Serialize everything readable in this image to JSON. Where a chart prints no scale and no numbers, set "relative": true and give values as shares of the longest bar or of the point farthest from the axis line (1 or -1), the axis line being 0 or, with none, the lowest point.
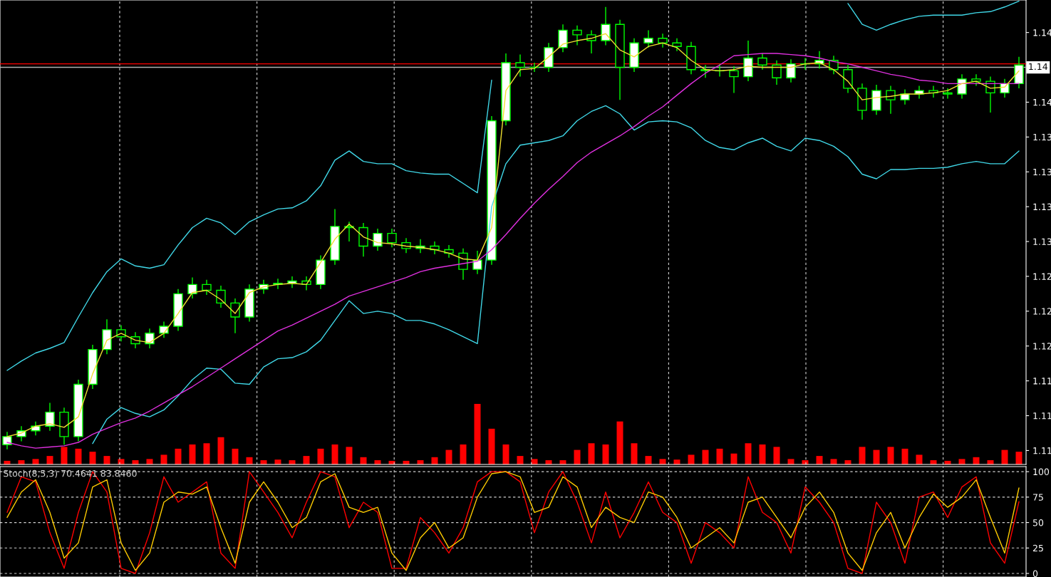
{
  "chart_data": [
    {
      "type": "candlestick",
      "categories": [
        null,
        null,
        null,
        null,
        null,
        null,
        null,
        null,
        null,
        null,
        null,
        null,
        null,
        null,
        null,
        null,
        null,
        null,
        null,
        null,
        null,
        null,
        null,
        null,
        null,
        null,
        null,
        null,
        null,
        null,
        null,
        null,
        null,
        null,
        null,
        null,
        null,
        null,
        null,
        null,
        null,
        null,
        null,
        null,
        null,
        null,
        null,
        null,
        null,
        null,
        null,
        null,
        null,
        null,
        null,
        null,
        null,
        null,
        null,
        null,
        null,
        null,
        null,
        null,
        null,
        null,
        null,
        null,
        null,
        null,
        null,
        null
      ],
      "color": "#00ff00",
      "ohlc": [
        [
          1.108,
          1.1091,
          1.1076,
          1.1087
        ],
        [
          1.1087,
          1.1096,
          1.1083,
          1.1092
        ],
        [
          1.1092,
          1.11,
          1.1088,
          1.1096
        ],
        [
          1.1096,
          1.1116,
          1.1092,
          1.1108
        ],
        [
          1.1108,
          1.1112,
          1.108,
          1.1087
        ],
        [
          1.1087,
          1.1136,
          1.1083,
          1.1132
        ],
        [
          1.1132,
          1.1166,
          1.1128,
          1.1162
        ],
        [
          1.1162,
          1.1188,
          1.1158,
          1.1179
        ],
        [
          1.1179,
          1.1183,
          1.1169,
          1.1173
        ],
        [
          1.1173,
          1.1177,
          1.1163,
          1.1167
        ],
        [
          1.1167,
          1.118,
          1.1163,
          1.1176
        ],
        [
          1.1176,
          1.1186,
          1.1172,
          1.1182
        ],
        [
          1.1182,
          1.1214,
          1.1178,
          1.121
        ],
        [
          1.121,
          1.1224,
          1.1206,
          1.1218
        ],
        [
          1.1218,
          1.1222,
          1.1209,
          1.1213
        ],
        [
          1.1213,
          1.1217,
          1.1198,
          1.1202
        ],
        [
          1.1202,
          1.1206,
          1.1176,
          1.119
        ],
        [
          1.119,
          1.1218,
          1.1186,
          1.1214
        ],
        [
          1.1214,
          1.1222,
          1.121,
          1.1218
        ],
        [
          1.1218,
          1.1223,
          1.1214,
          1.1219
        ],
        [
          1.1219,
          1.1225,
          1.1215,
          1.1221
        ],
        [
          1.1221,
          1.1225,
          1.1213,
          1.1218
        ],
        [
          1.1218,
          1.1243,
          1.1214,
          1.1239
        ],
        [
          1.1239,
          1.1283,
          1.1235,
          1.1268
        ],
        [
          1.1268,
          1.1272,
          1.1255,
          1.1267
        ],
        [
          1.1267,
          1.1271,
          1.1242,
          1.1251
        ],
        [
          1.1251,
          1.1266,
          1.1247,
          1.1262
        ],
        [
          1.1262,
          1.1266,
          1.125,
          1.1254
        ],
        [
          1.1254,
          1.1258,
          1.1245,
          1.1249
        ],
        [
          1.1249,
          1.1257,
          1.1245,
          1.1251
        ],
        [
          1.1251,
          1.1255,
          1.1244,
          1.1248
        ],
        [
          1.1248,
          1.1252,
          1.1241,
          1.1245
        ],
        [
          1.1245,
          1.1249,
          1.1222,
          1.1231
        ],
        [
          1.1231,
          1.1247,
          1.1227,
          1.1239
        ],
        [
          1.1239,
          1.1363,
          1.1235,
          1.1359
        ],
        [
          1.1359,
          1.1417,
          1.1355,
          1.1409
        ],
        [
          1.1409,
          1.1416,
          1.1397,
          1.1405
        ],
        [
          1.1405,
          1.1409,
          1.1401,
          1.1405
        ],
        [
          1.1405,
          1.1426,
          1.1401,
          1.1422
        ],
        [
          1.1422,
          1.1442,
          1.1418,
          1.1437
        ],
        [
          1.1437,
          1.1441,
          1.1424,
          1.1433
        ],
        [
          1.1433,
          1.1437,
          1.1417,
          1.1428
        ],
        [
          1.1428,
          1.1457,
          1.1424,
          1.1442
        ],
        [
          1.1442,
          1.1446,
          1.1377,
          1.1405
        ],
        [
          1.1405,
          1.143,
          1.1401,
          1.1426
        ],
        [
          1.1426,
          1.1437,
          1.1422,
          1.143
        ],
        [
          1.143,
          1.1434,
          1.1422,
          1.1426
        ],
        [
          1.1426,
          1.143,
          1.1419,
          1.1423
        ],
        [
          1.1423,
          1.1427,
          1.1399,
          1.1403
        ],
        [
          1.1403,
          1.1407,
          1.1396,
          1.1402
        ],
        [
          1.1402,
          1.1408,
          1.1397,
          1.1402
        ],
        [
          1.1402,
          1.1406,
          1.1383,
          1.1397
        ],
        [
          1.1397,
          1.1428,
          1.1393,
          1.1413
        ],
        [
          1.1413,
          1.1417,
          1.1403,
          1.1407
        ],
        [
          1.1407,
          1.1411,
          1.139,
          1.1396
        ],
        [
          1.1396,
          1.1412,
          1.1392,
          1.1408
        ],
        [
          1.1408,
          1.1413,
          1.1403,
          1.1408
        ],
        [
          1.1408,
          1.1419,
          1.1404,
          1.1411
        ],
        [
          1.1411,
          1.1415,
          1.1399,
          1.1403
        ],
        [
          1.1403,
          1.1407,
          1.1383,
          1.1387
        ],
        [
          1.1387,
          1.1391,
          1.136,
          1.1368
        ],
        [
          1.1368,
          1.139,
          1.1364,
          1.1385
        ],
        [
          1.1385,
          1.1389,
          1.1365,
          1.1377
        ],
        [
          1.1377,
          1.1386,
          1.1373,
          1.1382
        ],
        [
          1.1382,
          1.1389,
          1.1378,
          1.1385
        ],
        [
          1.1385,
          1.1389,
          1.1379,
          1.1383
        ],
        [
          1.1383,
          1.1387,
          1.1378,
          1.1382
        ],
        [
          1.1382,
          1.1399,
          1.1378,
          1.1395
        ],
        [
          1.1395,
          1.1399,
          1.1389,
          1.1393
        ],
        [
          1.1393,
          1.1397,
          1.1366,
          1.1383
        ],
        [
          1.1383,
          1.1395,
          1.1379,
          1.1391
        ],
        [
          1.1391,
          1.1414,
          1.1387,
          1.1407
        ]
      ],
      "series": [
        {
          "type": "line",
          "color": "#40d8e8",
          "values": [
            1.1144,
            1.1152,
            1.1159,
            1.1163,
            1.1168,
            1.119,
            1.1211,
            1.1229,
            1.124,
            1.1234,
            1.1232,
            1.1235,
            1.1252,
            1.1267,
            1.1275,
            1.1271,
            1.1261,
            1.1272,
            1.1278,
            1.1283,
            1.1284,
            1.129,
            1.1303,
            1.1325,
            1.1333,
            1.1324,
            1.1322,
            1.1322,
            1.1316,
            1.1314,
            1.1313,
            1.1313,
            1.1305,
            1.1297,
            1.1394,
            null,
            null,
            null,
            null,
            null,
            null,
            null,
            null,
            null,
            null,
            null,
            null,
            null,
            null,
            null,
            null,
            null,
            null,
            null,
            null,
            null,
            null,
            null,
            null,
            1.146,
            1.1442,
            1.1437,
            1.1442,
            1.1446,
            1.1449,
            1.145,
            1.145,
            1.145,
            1.1452,
            1.1453,
            1.1457,
            1.1462
          ]
        },
        {
          "type": "line",
          "color": "#40d8e8",
          "values": [
            null,
            null,
            null,
            null,
            null,
            null,
            1.1081,
            1.1102,
            1.1112,
            1.1107,
            1.1104,
            1.111,
            1.1122,
            1.1136,
            1.1146,
            1.1145,
            1.1133,
            1.1132,
            1.1147,
            1.1154,
            1.1155,
            1.116,
            1.117,
            1.1187,
            1.1204,
            1.1193,
            1.1195,
            1.1193,
            1.1187,
            1.1187,
            1.1184,
            1.1179,
            1.1173,
            1.1167,
            1.1285,
            1.1322,
            1.1338,
            1.134,
            1.1342,
            1.1346,
            1.1359,
            1.1367,
            1.1372,
            1.1365,
            1.1351,
            1.1358,
            1.1359,
            1.1358,
            1.1353,
            1.1342,
            1.1336,
            1.1334,
            1.134,
            1.1344,
            1.1337,
            1.1333,
            1.1344,
            1.1342,
            1.1337,
            1.1328,
            1.1313,
            1.1309,
            1.1317,
            1.1317,
            1.1318,
            1.1318,
            1.1319,
            1.1322,
            1.1324,
            1.1322,
            1.1322,
            1.1333
          ]
        },
        {
          "type": "line",
          "color": "#e030e0",
          "values": [
            1.1082,
            1.1079,
            1.1077,
            1.1078,
            1.1079,
            1.1082,
            1.1089,
            1.1094,
            1.1099,
            1.1103,
            1.1109,
            1.1116,
            1.1123,
            1.113,
            1.1138,
            1.1146,
            1.1154,
            1.1162,
            1.117,
            1.1178,
            1.1183,
            1.1189,
            1.1195,
            1.1201,
            1.1208,
            1.1212,
            1.1216,
            1.122,
            1.1224,
            1.1229,
            1.1232,
            1.1234,
            1.1236,
            1.1238,
            1.1248,
            1.1261,
            1.1275,
            1.1288,
            1.13,
            1.1311,
            1.1323,
            1.1332,
            1.1339,
            1.1346,
            1.1354,
            1.1363,
            1.1371,
            1.1381,
            1.1391,
            1.14,
            1.1407,
            1.1415,
            1.1416,
            1.1417,
            1.1417,
            1.1416,
            1.1415,
            1.1413,
            1.141,
            1.1408,
            1.1405,
            1.1402,
            1.1399,
            1.1397,
            1.1394,
            1.1393,
            1.1391,
            1.1391,
            1.1391,
            1.1391,
            1.1391,
            1.1391
          ]
        },
        {
          "type": "line",
          "color": "#f0e030",
          "values": [
            1.1087,
            1.109,
            1.1096,
            1.1098,
            1.1095,
            1.1104,
            1.1141,
            1.117,
            1.1176,
            1.117,
            1.1168,
            1.1176,
            1.1193,
            1.1211,
            1.1213,
            1.1205,
            1.1193,
            1.1211,
            1.1216,
            1.1218,
            1.1219,
            1.1218,
            1.1237,
            1.1257,
            1.127,
            1.1259,
            1.1254,
            1.1253,
            1.1251,
            1.125,
            1.1248,
            1.1245,
            1.124,
            1.1239,
            1.1267,
            1.1385,
            1.1403,
            1.1404,
            1.1414,
            1.1425,
            1.1428,
            1.143,
            1.1434,
            1.142,
            1.1414,
            1.1423,
            1.1426,
            1.1422,
            1.1411,
            1.1403,
            1.1402,
            1.1403,
            1.1406,
            1.1405,
            1.1405,
            1.1405,
            1.1408,
            1.1409,
            1.1403,
            1.1393,
            1.1377,
            1.1379,
            1.138,
            1.1382,
            1.1382,
            1.1383,
            1.1385,
            1.1391,
            1.1393,
            1.1387,
            1.1388,
            1.1402
          ]
        }
      ],
      "ylim": [
        1.1063,
        1.1463
      ],
      "yticks": [
        {
          "value": 1.1435,
          "label": "1.14"
        },
        {
          "value": 1.1375,
          "label": "1.14"
        },
        {
          "value": 1.1345,
          "label": "1.13"
        },
        {
          "value": 1.1315,
          "label": "1.13"
        },
        {
          "value": 1.1285,
          "label": "1.13"
        },
        {
          "value": 1.1255,
          "label": "1.13"
        },
        {
          "value": 1.1225,
          "label": "1.12"
        },
        {
          "value": 1.1195,
          "label": "1.12"
        },
        {
          "value": 1.1165,
          "label": "1.12"
        },
        {
          "value": 1.1135,
          "label": "1.11"
        },
        {
          "value": 1.1105,
          "label": "1.11"
        },
        {
          "value": 1.1075,
          "label": "1.11"
        }
      ],
      "ref_lines": [
        {
          "axis": "y",
          "value": 1.1408,
          "color": "#ff0000"
        },
        {
          "axis": "y",
          "value": 1.1405,
          "color": "#b0b0b0",
          "label": "1.14"
        }
      ],
      "grid": "x",
      "tick_labels": "y"
    },
    {
      "type": "bar",
      "categories": [
        null,
        null,
        null,
        null,
        null,
        null,
        null,
        null,
        null,
        null,
        null,
        null,
        null,
        null,
        null,
        null,
        null,
        null,
        null,
        null,
        null,
        null,
        null,
        null,
        null,
        null,
        null,
        null,
        null,
        null,
        null,
        null,
        null,
        null,
        null,
        null,
        null,
        null,
        null,
        null,
        null,
        null,
        null,
        null,
        null,
        null,
        null,
        null,
        null,
        null,
        null,
        null,
        null,
        null,
        null,
        null,
        null,
        null,
        null,
        null,
        null,
        null,
        null,
        null,
        null,
        null,
        null,
        null,
        null,
        null,
        null,
        null
      ],
      "color": "#ff0000",
      "relative": true,
      "values": [
        0.06,
        0.07,
        0.09,
        0.14,
        0.29,
        0.26,
        0.21,
        0.14,
        0.09,
        0.07,
        0.09,
        0.16,
        0.26,
        0.33,
        0.35,
        0.45,
        0.26,
        0.12,
        0.07,
        0.08,
        0.07,
        0.14,
        0.26,
        0.33,
        0.29,
        0.12,
        0.07,
        0.06,
        0.06,
        0.07,
        0.12,
        0.24,
        0.33,
        1,
        0.59,
        0.33,
        0.14,
        0.09,
        0.07,
        0.07,
        0.24,
        0.35,
        0.33,
        0.71,
        0.35,
        0.14,
        0.09,
        0.08,
        0.16,
        0.24,
        0.26,
        0.18,
        0.35,
        0.33,
        0.29,
        0.09,
        0.07,
        0.14,
        0.09,
        0.07,
        0.29,
        0.24,
        0.29,
        0.26,
        0.16,
        0.07,
        0.06,
        0.09,
        0.12,
        0.07,
        0.24,
        0.21
      ],
      "tick_labels": false
    },
    {
      "type": "line",
      "title": "Stoch(8,5,3) 70.4641 83.8460",
      "categories": [
        null,
        null,
        null,
        null,
        null,
        null,
        null,
        null,
        null,
        null,
        null,
        null,
        null,
        null,
        null,
        null,
        null,
        null,
        null,
        null,
        null,
        null,
        null,
        null,
        null,
        null,
        null,
        null,
        null,
        null,
        null,
        null,
        null,
        null,
        null,
        null,
        null,
        null,
        null,
        null,
        null,
        null,
        null,
        null,
        null,
        null,
        null,
        null,
        null,
        null,
        null,
        null,
        null,
        null,
        null,
        null,
        null,
        null,
        null,
        null,
        null,
        null,
        null,
        null,
        null,
        null,
        null,
        null,
        null,
        null,
        null,
        null
      ],
      "series": [
        {
          "color": "#ff0000",
          "values": [
            60,
            95,
            90,
            40,
            5,
            60,
            100,
            80,
            5,
            0,
            40,
            95,
            70,
            80,
            90,
            20,
            5,
            100,
            80,
            60,
            35,
            70,
            100,
            95,
            45,
            70,
            60,
            5,
            5,
            55,
            40,
            20,
            45,
            90,
            100,
            100,
            90,
            40,
            80,
            100,
            70,
            30,
            80,
            35,
            60,
            90,
            60,
            50,
            10,
            50,
            40,
            25,
            95,
            60,
            50,
            20,
            85,
            70,
            50,
            5,
            0,
            70,
            50,
            10,
            75,
            80,
            55,
            85,
            95,
            30,
            10,
            70.5
          ]
        },
        {
          "color": "#ffcc00",
          "values": [
            55,
            80,
            92,
            60,
            15,
            30,
            85,
            92,
            30,
            3,
            20,
            70,
            80,
            78,
            85,
            45,
            10,
            70,
            90,
            70,
            45,
            55,
            90,
            98,
            65,
            60,
            65,
            20,
            3,
            35,
            50,
            25,
            35,
            75,
            98,
            100,
            95,
            60,
            65,
            95,
            85,
            45,
            65,
            55,
            50,
            80,
            75,
            55,
            25,
            35,
            45,
            30,
            70,
            75,
            55,
            35,
            65,
            80,
            60,
            20,
            3,
            40,
            60,
            25,
            55,
            78,
            65,
            75,
            92,
            55,
            20,
            84
          ]
        }
      ],
      "ylim": [
        -3.5,
        105
      ],
      "yticks": [
        0,
        25,
        50,
        75,
        100
      ],
      "grid": true,
      "tick_labels": "y"
    }
  ]
}
